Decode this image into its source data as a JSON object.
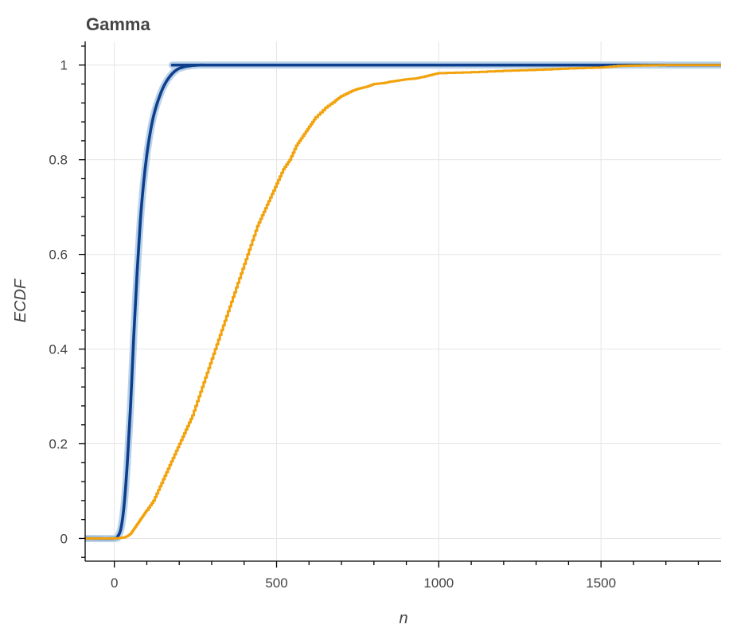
{
  "chart_data": {
    "type": "line",
    "title": "Gamma",
    "xlabel": "n",
    "ylabel": "ECDF",
    "xlim": [
      -90,
      1870
    ],
    "ylim": [
      -0.048,
      1.05
    ],
    "x_ticks": [
      0,
      500,
      1000,
      1500
    ],
    "x_tick_labels": [
      "0",
      "500",
      "1000",
      "1500"
    ],
    "y_ticks": [
      0,
      0.2,
      0.4,
      0.6,
      0.8,
      1
    ],
    "y_tick_labels": [
      "0",
      "0.2",
      "0.4",
      "0.6",
      "0.8",
      "1"
    ],
    "grid": true,
    "legend": "none",
    "series": [
      {
        "color": "#0e3f8c",
        "band_color": "#b9d2ea",
        "line_style": "smooth",
        "x": [
          -90,
          0,
          10,
          20,
          30,
          40,
          50,
          60,
          70,
          80,
          90,
          100,
          110,
          120,
          130,
          140,
          150,
          160,
          170,
          180,
          190,
          200,
          210,
          220,
          230,
          240,
          250,
          260,
          280,
          300,
          1870
        ],
        "y": [
          0,
          0,
          0.004,
          0.02,
          0.07,
          0.16,
          0.28,
          0.43,
          0.56,
          0.67,
          0.75,
          0.81,
          0.855,
          0.89,
          0.915,
          0.935,
          0.952,
          0.965,
          0.975,
          0.983,
          0.989,
          0.993,
          0.995,
          0.997,
          0.998,
          0.999,
          0.9995,
          1,
          1,
          1,
          1
        ]
      },
      {
        "color": "#f2a20c",
        "line_style": "step",
        "x": [
          -90,
          0,
          30,
          40,
          50,
          60,
          70,
          80,
          90,
          100,
          120,
          140,
          160,
          180,
          200,
          220,
          240,
          260,
          280,
          300,
          320,
          340,
          360,
          380,
          400,
          420,
          440,
          460,
          480,
          500,
          520,
          540,
          560,
          580,
          600,
          620,
          650,
          680,
          700,
          730,
          750,
          780,
          800,
          830,
          850,
          880,
          900,
          930,
          950,
          980,
          1000,
          1100,
          1200,
          1300,
          1400,
          1500,
          1550,
          1600,
          1700,
          1800,
          1870
        ],
        "y": [
          0,
          0,
          0.002,
          0.005,
          0.01,
          0.02,
          0.03,
          0.04,
          0.05,
          0.06,
          0.08,
          0.11,
          0.14,
          0.17,
          0.2,
          0.23,
          0.26,
          0.3,
          0.34,
          0.38,
          0.42,
          0.46,
          0.5,
          0.54,
          0.58,
          0.62,
          0.66,
          0.69,
          0.72,
          0.75,
          0.78,
          0.8,
          0.83,
          0.85,
          0.87,
          0.89,
          0.91,
          0.925,
          0.935,
          0.945,
          0.95,
          0.955,
          0.96,
          0.962,
          0.965,
          0.968,
          0.97,
          0.972,
          0.975,
          0.98,
          0.983,
          0.985,
          0.988,
          0.99,
          0.993,
          0.995,
          0.998,
          0.999,
          1,
          1,
          1
        ]
      }
    ]
  }
}
